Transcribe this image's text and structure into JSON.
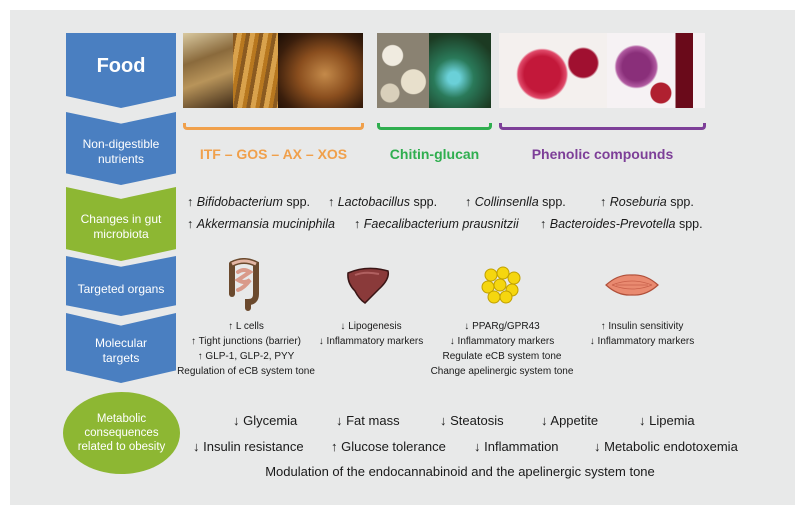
{
  "rows": {
    "food": "Food",
    "nutrients": "Non-digestible nutrients",
    "microbiota": "Changes in gut microbiota",
    "organs": "Targeted organs",
    "molecular": "Molecular targets",
    "consequences": "Metabolic consequences related to obesity"
  },
  "sources": [
    {
      "label": "ITF – GOS – AX – XOS",
      "color": "#f0a04b"
    },
    {
      "label": "Chitin-glucan",
      "color": "#2fae4f"
    },
    {
      "label": "Phenolic compounds",
      "color": "#7d3f98"
    }
  ],
  "microbiota_changes": [
    {
      "arrow": "↑",
      "name": "Bifidobacterium",
      "suffix": "spp."
    },
    {
      "arrow": "↑",
      "name": "Lactobacillus",
      "suffix": "spp."
    },
    {
      "arrow": "↑",
      "name": "Collinsenlla",
      "suffix": "spp."
    },
    {
      "arrow": "↑",
      "name": "Roseburia",
      "suffix": "spp."
    },
    {
      "arrow": "↑",
      "name": "Akkermansia muciniphila",
      "suffix": ""
    },
    {
      "arrow": "↑",
      "name": "Faecalibacterium prausnitzii",
      "suffix": ""
    },
    {
      "arrow": "↑",
      "name": "Bacteroides-Prevotella",
      "suffix": "spp."
    }
  ],
  "organs": [
    {
      "name": "intestine-icon",
      "lines": [
        "↑ L cells",
        "↑ Tight junctions (barrier)",
        "↑ GLP-1, GLP-2, PYY",
        "Regulation of eCB system tone"
      ]
    },
    {
      "name": "liver-icon",
      "lines": [
        "↓ Lipogenesis",
        "↓ Inflammatory markers"
      ]
    },
    {
      "name": "adipose-tissue-icon",
      "lines": [
        "↓ PPARg/GPR43",
        "↓ Inflammatory markers",
        "Regulate eCB system tone",
        "Change apelinergic system tone"
      ]
    },
    {
      "name": "muscle-icon",
      "lines": [
        "↑ Insulin sensitivity",
        "↓ Inflammatory markers"
      ]
    }
  ],
  "consequences": {
    "row1": [
      "↓ Glycemia",
      "↓ Fat mass",
      "↓ Steatosis",
      "↓ Appetite",
      "↓ Lipemia"
    ],
    "row2": [
      "↓ Insulin resistance",
      "↑ Glucose tolerance",
      "↓ Inflammation",
      "↓ Metabolic endotoxemia"
    ],
    "row3": "Modulation of the endocannabinoid and the apelinergic system tone"
  },
  "colors": {
    "blue": "#4a7fc1",
    "green": "#8db733",
    "panel": "#e8e9e9"
  }
}
